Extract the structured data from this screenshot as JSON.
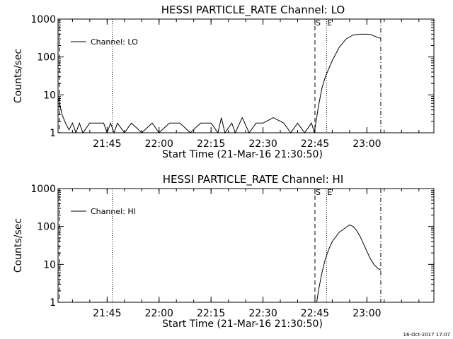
{
  "timestamp": "16-Oct-2017 17:07",
  "chart_data": [
    {
      "type": "line",
      "title": "HESSI PARTICLE_RATE Channel: LO",
      "xlabel": "Start Time (21-Mar-16 21:30:50)",
      "ylabel": "Counts/sec",
      "y_scale": "log",
      "ylim": [
        1,
        1000
      ],
      "xlim": [
        "21:30:50",
        "23:19:20"
      ],
      "x_ticks": [
        "21:45",
        "22:00",
        "22:15",
        "22:30",
        "22:45",
        "23:00"
      ],
      "y_ticks": [
        "1",
        "10",
        "100",
        "1000"
      ],
      "legend": {
        "placement": "top-left",
        "entries": [
          "Channel: LO"
        ]
      },
      "markers": [
        {
          "label": "S",
          "x": "22:45:00",
          "style": "dashed"
        },
        {
          "label": "E",
          "x": "22:48:20",
          "style": "dotted"
        },
        {
          "label": "",
          "x": "21:46:30",
          "style": "dotted"
        },
        {
          "label": "",
          "x": "23:04:00",
          "style": "dashdot"
        },
        {
          "label": "",
          "x": "21:31:15",
          "style": "dashed"
        }
      ],
      "series": [
        {
          "name": "Channel: LO",
          "x": [
            "21:31:00",
            "21:32:00",
            "21:33:00",
            "21:34:00",
            "21:35:00",
            "21:36:00",
            "21:37:00",
            "21:38:00",
            "21:40:00",
            "21:44:00",
            "21:45:00",
            "21:46:00",
            "21:47:00",
            "21:48:00",
            "21:50:00",
            "21:52:00",
            "21:55:00",
            "21:58:00",
            "22:00:00",
            "22:03:00",
            "22:06:00",
            "22:09:00",
            "22:12:00",
            "22:15:00",
            "22:17:00",
            "22:18:00",
            "22:19:00",
            "22:21:00",
            "22:22:00",
            "22:24:00",
            "22:26:00",
            "22:28:00",
            "22:30:00",
            "22:33:00",
            "22:36:00",
            "22:38:00",
            "22:40:00",
            "22:42:00",
            "22:44:00",
            "22:44:50",
            "22:45:00",
            "22:46:00",
            "22:47:00",
            "22:48:00",
            "22:50:00",
            "22:52:00",
            "22:54:00",
            "22:56:00",
            "22:58:00",
            "23:00:00",
            "23:01:00",
            "23:02:00",
            "23:03:00",
            "23:04:00"
          ],
          "y": [
            8,
            3,
            1.8,
            1.2,
            1.8,
            1,
            1.8,
            1,
            1.8,
            1.8,
            1,
            1.8,
            1,
            1.8,
            1,
            1.8,
            1,
            1.8,
            1,
            1.8,
            1.8,
            1,
            1.8,
            1.8,
            1,
            2.5,
            1,
            1.8,
            1,
            2.5,
            1,
            1.8,
            1.8,
            2.5,
            1.8,
            1,
            1.8,
            1,
            1.8,
            1,
            1.3,
            5,
            15,
            30,
            80,
            180,
            300,
            380,
            400,
            400,
            390,
            360,
            330,
            310
          ]
        }
      ]
    },
    {
      "type": "line",
      "title": "HESSI PARTICLE_RATE Channel: HI",
      "xlabel": "Start Time (21-Mar-16 21:30:50)",
      "ylabel": "Counts/sec",
      "y_scale": "log",
      "ylim": [
        1,
        1000
      ],
      "xlim": [
        "21:30:50",
        "23:19:20"
      ],
      "x_ticks": [
        "21:45",
        "22:00",
        "22:15",
        "22:30",
        "22:45",
        "23:00"
      ],
      "y_ticks": [
        "1",
        "10",
        "100",
        "1000"
      ],
      "legend": {
        "placement": "top-left",
        "entries": [
          "Channel: HI"
        ]
      },
      "markers": [
        {
          "label": "S",
          "x": "22:45:00",
          "style": "dashed"
        },
        {
          "label": "E",
          "x": "22:48:20",
          "style": "dotted"
        },
        {
          "label": "",
          "x": "21:46:30",
          "style": "dotted"
        },
        {
          "label": "",
          "x": "23:04:00",
          "style": "dashdot"
        },
        {
          "label": "",
          "x": "21:31:15",
          "style": "dashed"
        }
      ],
      "series": [
        {
          "name": "Channel: HI",
          "x": [
            "22:45:30",
            "22:46:00",
            "22:47:00",
            "22:48:00",
            "22:49:00",
            "22:50:00",
            "22:52:00",
            "22:54:00",
            "22:55:00",
            "22:56:00",
            "22:57:00",
            "22:58:00",
            "22:59:00",
            "23:00:00",
            "23:01:00",
            "23:02:00",
            "23:03:00",
            "23:04:00"
          ],
          "y": [
            1,
            2,
            6,
            14,
            25,
            40,
            70,
            95,
            110,
            100,
            80,
            55,
            35,
            22,
            14,
            10,
            8,
            7
          ]
        }
      ]
    }
  ]
}
